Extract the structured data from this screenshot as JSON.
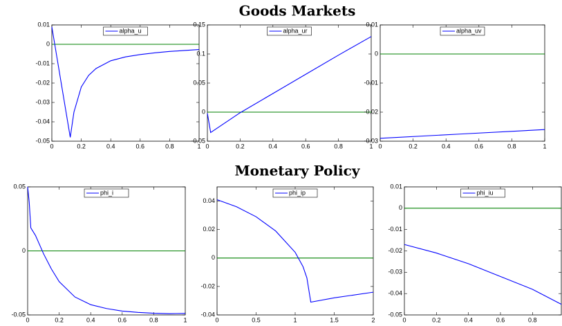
{
  "headings": [
    "Goods Markets",
    "Monetary Policy"
  ],
  "chart_data": [
    {
      "type": "line",
      "xlim": [
        0,
        1
      ],
      "xticks": [
        0,
        0.2,
        0.4,
        0.6,
        0.8,
        1
      ],
      "ylim": [
        -0.05,
        0.01
      ],
      "yticks": [
        -0.05,
        -0.04,
        -0.03,
        -0.02,
        -0.01,
        0,
        0.01
      ],
      "x": [
        0,
        0.125,
        0.15,
        0.2,
        0.25,
        0.3,
        0.4,
        0.5,
        0.6,
        0.7,
        0.8,
        0.9,
        1
      ],
      "series": [
        {
          "name": "alpha_u",
          "color": "#0000ff",
          "values": [
            0.009,
            -0.048,
            -0.035,
            -0.022,
            -0.016,
            -0.0125,
            -0.0085,
            -0.0065,
            -0.0053,
            -0.0044,
            -0.0037,
            -0.0032,
            -0.0027
          ]
        }
      ],
      "reference_line": {
        "value": 0,
        "color": "#008000"
      }
    },
    {
      "type": "line",
      "xlim": [
        0,
        1
      ],
      "xticks": [
        0,
        0.2,
        0.4,
        0.6,
        0.8,
        1
      ],
      "ylim": [
        -0.05,
        0.15
      ],
      "yticks": [
        -0.05,
        0,
        0.05,
        0.1,
        0.15
      ],
      "x": [
        0,
        0.02,
        0.2,
        0.4,
        0.6,
        0.8,
        1
      ],
      "series": [
        {
          "name": "alpha_ur",
          "color": "#0000ff",
          "values": [
            -0.002,
            -0.035,
            -0.001,
            0.032,
            0.065,
            0.098,
            0.13
          ]
        }
      ],
      "reference_line": {
        "value": 0,
        "color": "#008000"
      }
    },
    {
      "type": "line",
      "xlim": [
        0,
        1
      ],
      "xticks": [
        0,
        0.2,
        0.4,
        0.6,
        0.8,
        1
      ],
      "ylim": [
        -0.03,
        0.01
      ],
      "yticks": [
        -0.03,
        -0.02,
        -0.01,
        0,
        0.01
      ],
      "x": [
        0,
        0.5,
        1
      ],
      "series": [
        {
          "name": "alpha_uv",
          "color": "#0000ff",
          "values": [
            -0.029,
            -0.0275,
            -0.026
          ]
        }
      ],
      "reference_line": {
        "value": 0,
        "color": "#008000"
      }
    },
    {
      "type": "line",
      "xlim": [
        0,
        1
      ],
      "xticks": [
        0,
        0.2,
        0.4,
        0.6,
        0.8,
        1
      ],
      "ylim": [
        -0.05,
        0.05
      ],
      "yticks": [
        -0.05,
        0,
        0.05
      ],
      "x": [
        0,
        0.01,
        0.02,
        0.05,
        0.1,
        0.15,
        0.2,
        0.3,
        0.4,
        0.5,
        0.6,
        0.7,
        0.8,
        0.9,
        1
      ],
      "series": [
        {
          "name": "phi_i",
          "color": "#0000ff",
          "values": [
            0.05,
            0.038,
            0.018,
            0.012,
            -0.002,
            -0.014,
            -0.024,
            -0.036,
            -0.042,
            -0.045,
            -0.047,
            -0.048,
            -0.0487,
            -0.049,
            -0.0488
          ]
        }
      ],
      "reference_line": {
        "value": 0,
        "color": "#008000"
      }
    },
    {
      "type": "line",
      "xlim": [
        0,
        2
      ],
      "xticks": [
        0,
        0.5,
        1,
        1.5,
        2
      ],
      "ylim": [
        -0.04,
        0.05
      ],
      "yticks": [
        -0.04,
        -0.02,
        0,
        0.02,
        0.04
      ],
      "x": [
        0,
        0.25,
        0.5,
        0.75,
        1,
        1.1,
        1.15,
        1.2,
        1.5,
        2
      ],
      "series": [
        {
          "name": "phi_ip",
          "color": "#0000ff",
          "values": [
            0.041,
            0.036,
            0.029,
            0.019,
            0.004,
            -0.006,
            -0.014,
            -0.031,
            -0.028,
            -0.024
          ]
        }
      ],
      "reference_line": {
        "value": 0,
        "color": "#008000"
      }
    },
    {
      "type": "line",
      "xlim": [
        0,
        0.98
      ],
      "xticks": [
        0,
        0.2,
        0.4,
        0.6,
        0.8
      ],
      "ylim": [
        -0.05,
        0.01
      ],
      "yticks": [
        -0.05,
        -0.04,
        -0.03,
        -0.02,
        -0.01,
        0,
        0.01
      ],
      "x": [
        0,
        0.2,
        0.4,
        0.6,
        0.8,
        0.98
      ],
      "series": [
        {
          "name": "phi_iu",
          "color": "#0000ff",
          "values": [
            -0.017,
            -0.021,
            -0.026,
            -0.032,
            -0.038,
            -0.045
          ]
        }
      ],
      "reference_line": {
        "value": 0,
        "color": "#008000"
      }
    }
  ]
}
